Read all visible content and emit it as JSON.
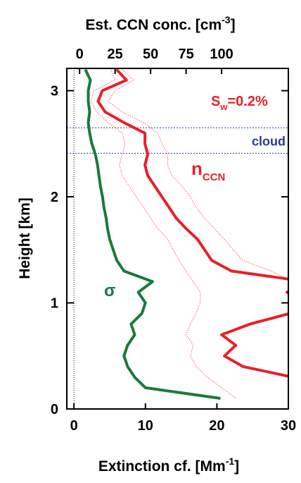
{
  "chart_data": {
    "type": "profile",
    "title_parts": [
      "Est. CCN conc. [cm",
      "-3",
      "]"
    ],
    "xlabel_parts": [
      "Extinction cf. [Mm",
      "-1",
      "]"
    ],
    "ylabel": "Height [km]",
    "xlim": [
      -1,
      30
    ],
    "xticks": [
      0,
      10,
      20,
      30
    ],
    "x2lim": [
      -9,
      147
    ],
    "x2ticks": [
      0,
      25,
      50,
      75,
      100
    ],
    "ylim": [
      0,
      3.21
    ],
    "yticks": [
      0,
      1,
      2,
      3
    ],
    "heights": [
      0.1,
      0.2,
      0.3,
      0.4,
      0.5,
      0.6,
      0.7,
      0.8,
      0.9,
      1.0,
      1.1,
      1.2,
      1.3,
      1.4,
      1.5,
      1.6,
      1.7,
      1.8,
      1.9,
      2.0,
      2.1,
      2.2,
      2.3,
      2.4,
      2.5,
      2.6,
      2.7,
      2.8,
      2.9,
      3.0,
      3.1,
      3.2
    ],
    "series": [
      {
        "name": "σ",
        "color": "#1a7a3a",
        "axis": "x",
        "width": 4,
        "dotted": false,
        "values": [
          20.5,
          10,
          8.5,
          7.5,
          7,
          7.5,
          8.5,
          8,
          9.5,
          10,
          9,
          11,
          7,
          6,
          5.5,
          5,
          4.7,
          4.5,
          4.2,
          4,
          3.7,
          3.5,
          3.3,
          3,
          2.5,
          2.2,
          2,
          2.2,
          2,
          2,
          2.3,
          1.6
        ]
      },
      {
        "name": "n",
        "sub": "CCN",
        "color": "#e8202a",
        "axis": "x2",
        "width": 4,
        "dotted": false,
        "values": [
          180,
          170,
          150,
          115,
          102,
          110,
          100,
          120,
          148,
          160,
          146,
          160,
          107,
          93,
          88,
          83,
          75,
          68,
          63,
          58,
          53,
          48,
          46,
          48,
          46,
          46,
          31,
          18,
          13,
          16,
          33,
          26
        ]
      },
      {
        "color": "#e8202a",
        "axis": "x2",
        "width": 1,
        "dotted": true,
        "values": [
          110,
          100,
          90,
          82,
          78,
          80,
          75,
          78,
          82,
          85,
          85,
          80,
          75,
          70,
          66,
          62,
          55,
          50,
          45,
          40,
          35,
          30,
          28,
          30,
          32,
          30,
          20,
          12,
          8,
          10,
          25,
          22
        ]
      },
      {
        "color": "#e8202a",
        "axis": "x2",
        "width": 1,
        "dotted": true,
        "values": [
          155,
          155,
          155,
          155,
          155,
          155,
          155,
          155,
          155,
          155,
          155,
          150,
          135,
          115,
          108,
          102,
          95,
          88,
          82,
          78,
          72,
          65,
          62,
          62,
          58,
          55,
          45,
          30,
          20,
          25,
          38,
          30
        ]
      }
    ],
    "cloud": {
      "label": "cloud",
      "bounds": [
        2.41,
        2.65
      ],
      "color": "#2b3a9a"
    },
    "annotation": {
      "text": "S",
      "sub": "w",
      "rest": "=0.2%"
    }
  }
}
